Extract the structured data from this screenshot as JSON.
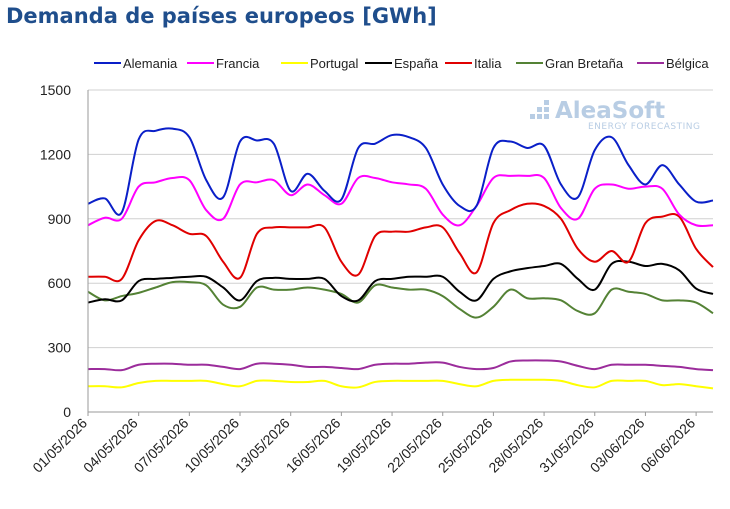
{
  "chart_data": {
    "type": "line",
    "title": "Demanda de países europeos [GWh]",
    "xlabel": "",
    "ylabel": "",
    "ylim": [
      0,
      1500
    ],
    "yticks": [
      0,
      300,
      600,
      900,
      1200,
      1500
    ],
    "x": [
      "01/05/2026",
      "02/05/2026",
      "03/05/2026",
      "04/05/2026",
      "05/05/2026",
      "06/05/2026",
      "07/05/2026",
      "08/05/2026",
      "09/05/2026",
      "10/05/2026",
      "11/05/2026",
      "12/05/2026",
      "13/05/2026",
      "14/05/2026",
      "15/05/2026",
      "16/05/2026",
      "17/05/2026",
      "18/05/2026",
      "19/05/2026",
      "20/05/2026",
      "21/05/2026",
      "22/05/2026",
      "23/05/2026",
      "24/05/2026",
      "25/05/2026",
      "26/05/2026",
      "27/05/2026",
      "28/05/2026",
      "29/05/2026",
      "30/05/2026",
      "31/05/2026",
      "01/06/2026",
      "02/06/2026",
      "03/06/2026",
      "04/06/2026",
      "05/06/2026",
      "06/06/2026",
      "07/06/2026"
    ],
    "xtick_labels": [
      "01/05/2026",
      "04/05/2026",
      "07/05/2026",
      "10/05/2026",
      "13/05/2026",
      "16/05/2026",
      "19/05/2026",
      "22/05/2026",
      "25/05/2026",
      "28/05/2026",
      "31/05/2026",
      "03/06/2026",
      "06/06/2026"
    ],
    "grid": "horizontal",
    "legend_position": "top",
    "watermark": {
      "brand": "AleaSoft",
      "tagline": "ENERGY FORECASTING"
    },
    "series": [
      {
        "name": "Alemania",
        "color": "#0a1fc8",
        "values": [
          970,
          995,
          930,
          1270,
          1310,
          1320,
          1280,
          1080,
          1000,
          1260,
          1265,
          1250,
          1030,
          1110,
          1030,
          990,
          1230,
          1250,
          1290,
          1280,
          1230,
          1060,
          960,
          960,
          1230,
          1260,
          1230,
          1240,
          1060,
          1000,
          1220,
          1280,
          1150,
          1060,
          1150,
          1060,
          980,
          985
        ]
      },
      {
        "name": "Francia",
        "color": "#ff00ff",
        "values": [
          870,
          905,
          900,
          1050,
          1070,
          1090,
          1080,
          940,
          900,
          1060,
          1070,
          1080,
          1010,
          1060,
          1010,
          970,
          1090,
          1090,
          1070,
          1060,
          1040,
          920,
          870,
          960,
          1090,
          1100,
          1100,
          1090,
          950,
          900,
          1040,
          1060,
          1040,
          1050,
          1040,
          920,
          870,
          870
        ]
      },
      {
        "name": "Portugal",
        "color": "#ffff00",
        "values": [
          120,
          120,
          115,
          135,
          145,
          145,
          145,
          145,
          130,
          120,
          145,
          145,
          140,
          140,
          145,
          120,
          115,
          140,
          145,
          145,
          145,
          145,
          130,
          120,
          145,
          150,
          150,
          150,
          145,
          125,
          115,
          145,
          145,
          145,
          125,
          130,
          120,
          110
        ]
      },
      {
        "name": "España",
        "color": "#000000",
        "values": [
          510,
          525,
          520,
          610,
          620,
          625,
          630,
          630,
          580,
          520,
          610,
          625,
          620,
          620,
          620,
          540,
          520,
          610,
          620,
          630,
          630,
          630,
          560,
          520,
          620,
          655,
          670,
          680,
          690,
          620,
          570,
          690,
          700,
          680,
          690,
          660,
          575,
          550
        ]
      },
      {
        "name": "Italia",
        "color": "#e00000",
        "values": [
          630,
          630,
          620,
          800,
          890,
          870,
          830,
          820,
          700,
          625,
          830,
          860,
          860,
          860,
          860,
          700,
          640,
          820,
          840,
          840,
          860,
          860,
          740,
          650,
          880,
          940,
          970,
          960,
          900,
          760,
          700,
          750,
          700,
          880,
          910,
          910,
          760,
          675
        ]
      },
      {
        "name": "Gran Bretaña",
        "color": "#548235",
        "values": [
          560,
          520,
          540,
          555,
          580,
          605,
          605,
          590,
          500,
          490,
          580,
          570,
          570,
          580,
          570,
          550,
          510,
          590,
          580,
          570,
          570,
          540,
          480,
          440,
          490,
          570,
          530,
          530,
          520,
          470,
          460,
          570,
          560,
          550,
          520,
          520,
          510,
          460
        ]
      },
      {
        "name": "Bélgica",
        "color": "#9b2c9b",
        "values": [
          200,
          200,
          195,
          220,
          225,
          225,
          220,
          220,
          210,
          200,
          225,
          225,
          220,
          210,
          210,
          205,
          200,
          220,
          225,
          225,
          230,
          230,
          210,
          200,
          205,
          235,
          240,
          240,
          235,
          215,
          200,
          220,
          220,
          220,
          215,
          210,
          200,
          195
        ]
      }
    ]
  }
}
